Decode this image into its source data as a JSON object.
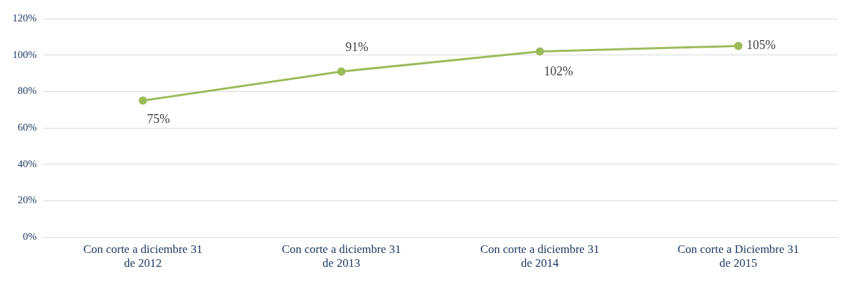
{
  "chart_data": {
    "type": "line",
    "categories": [
      "Con corte a diciembre 31 de 2012",
      "Con corte a diciembre 31 de 2013",
      "Con corte a diciembre 31 de 2014",
      "Con corte a Diciembre 31 de 2015"
    ],
    "series": [
      {
        "color": "#9bbb59",
        "values": [
          75,
          91,
          102,
          105
        ],
        "value_labels": [
          "75%",
          "91%",
          "102%",
          "105%"
        ]
      }
    ],
    "ylim": [
      0,
      120
    ],
    "yticks": [
      {
        "value": 0,
        "label": "0%"
      },
      {
        "value": 20,
        "label": "20%"
      },
      {
        "value": 40,
        "label": "40%"
      },
      {
        "value": 60,
        "label": "60%"
      },
      {
        "value": 80,
        "label": "80%"
      },
      {
        "value": 100,
        "label": "100%"
      },
      {
        "value": 120,
        "label": "120%"
      }
    ],
    "grid": "y",
    "legend": false,
    "marker": "circle",
    "line_style": "solid"
  }
}
